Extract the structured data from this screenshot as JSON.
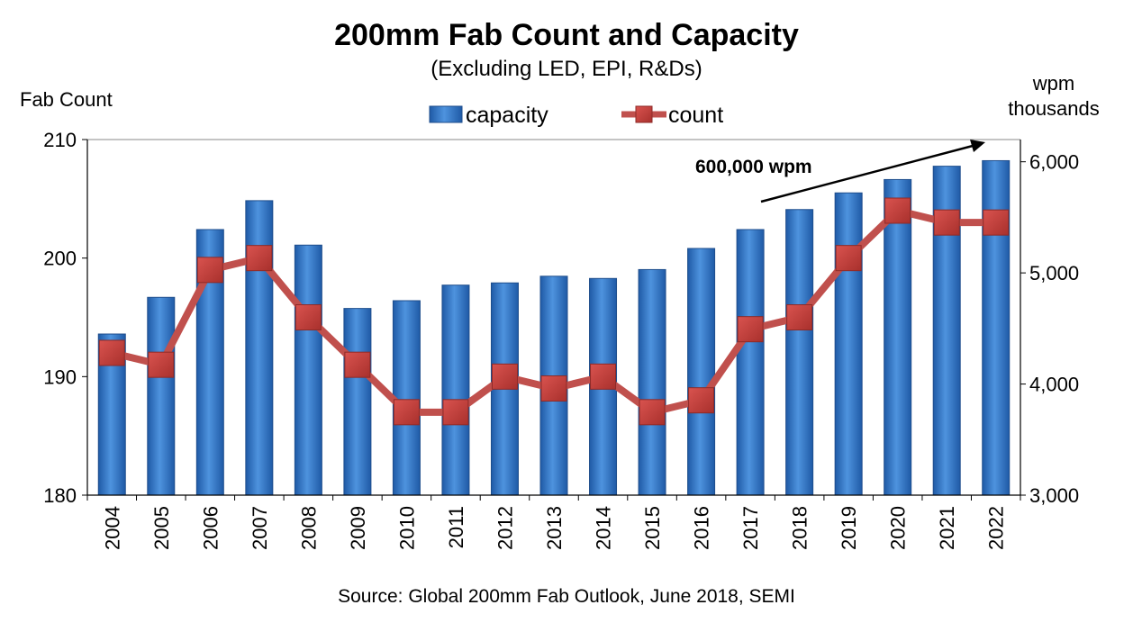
{
  "chart_data": {
    "type": "bar+line",
    "title": "200mm Fab Count and Capacity",
    "subtitle": "(Excluding LED, EPI, R&Ds)",
    "ylabel_left": "Fab Count",
    "ylabel_right_line1": "wpm",
    "ylabel_right_line2": "thousands",
    "categories": [
      "2004",
      "2005",
      "2006",
      "2007",
      "2008",
      "2009",
      "2010",
      "2011",
      "2012",
      "2013",
      "2014",
      "2015",
      "2016",
      "2017",
      "2018",
      "2019",
      "2020",
      "2021",
      "2022"
    ],
    "series": [
      {
        "name": "capacity",
        "type": "bar",
        "axis": "right",
        "color": "#2E75C6",
        "values": [
          4450,
          4780,
          5390,
          5650,
          5250,
          4680,
          4750,
          4890,
          4910,
          4970,
          4950,
          5030,
          5220,
          5390,
          5570,
          5720,
          5840,
          5960,
          6010
        ]
      },
      {
        "name": "count",
        "type": "line",
        "axis": "left",
        "color": "#C0504D",
        "values": [
          192,
          191,
          199,
          200,
          195,
          191,
          187,
          187,
          190,
          189,
          190,
          187,
          188,
          194,
          195,
          200,
          204,
          203,
          203
        ]
      }
    ],
    "left_axis": {
      "min": 180,
      "max": 210,
      "ticks": [
        "180",
        "190",
        "200",
        "210"
      ]
    },
    "right_axis": {
      "min": 3000,
      "max": 6200,
      "ticks": [
        "3,000",
        "4,000",
        "5,000",
        "6,000"
      ]
    },
    "grid": false,
    "legend_position": "top-center",
    "annotation": "600,000 wpm",
    "source": "Source: Global 200mm Fab Outlook, June 2018, SEMI"
  }
}
